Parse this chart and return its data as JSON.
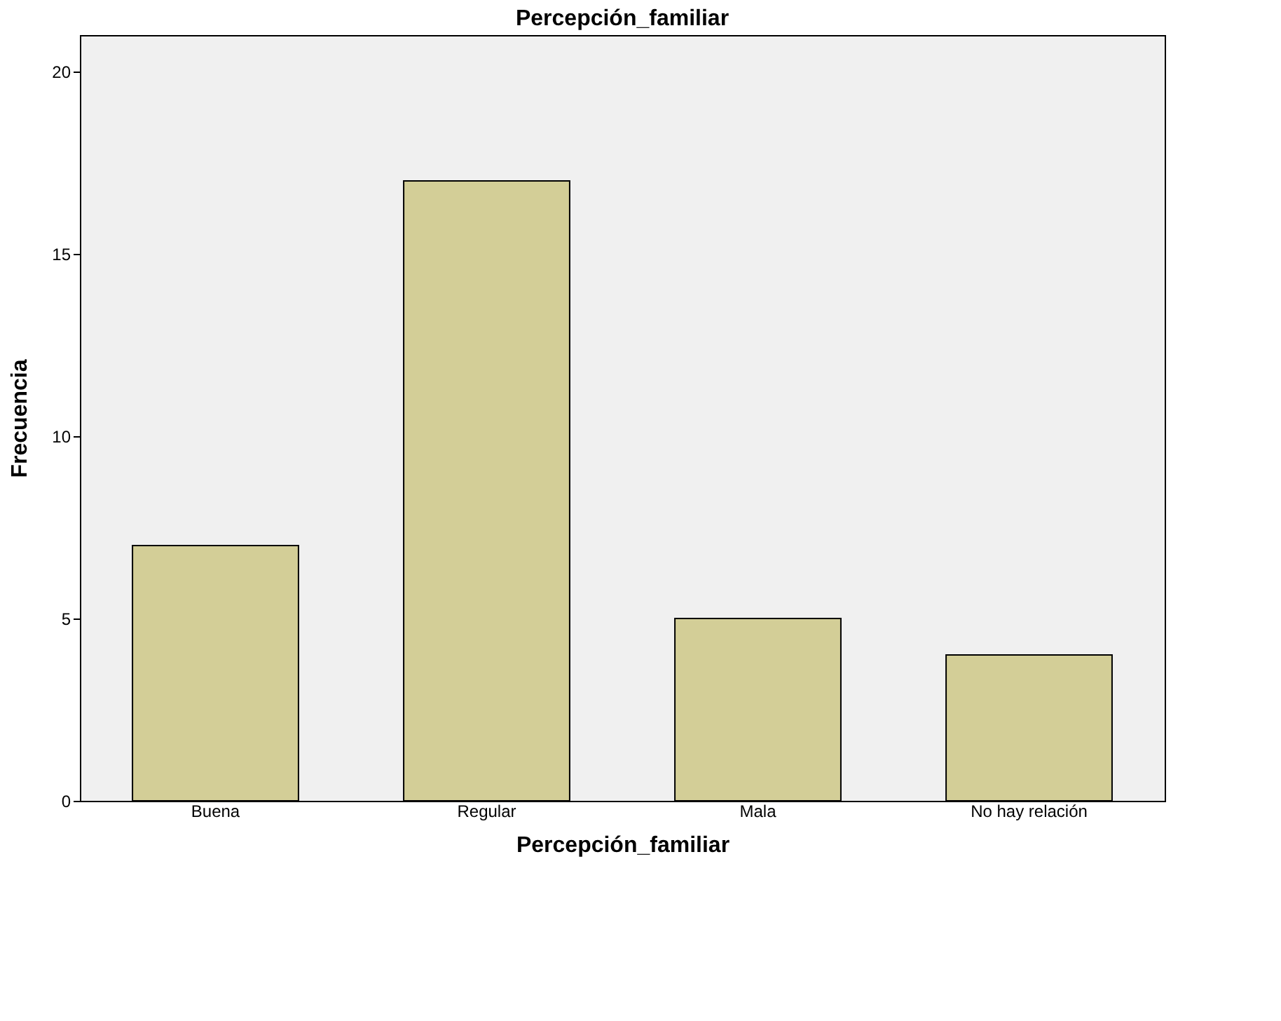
{
  "chart_data": {
    "type": "bar",
    "title": "Percepción_familiar",
    "xlabel": "Percepción_familiar",
    "ylabel": "Frecuencia",
    "categories": [
      "Buena",
      "Regular",
      "Mala",
      "No hay relación"
    ],
    "values": [
      7,
      17,
      5,
      4
    ],
    "color": "#d3ce97",
    "ylim": [
      0,
      21
    ],
    "yticks": [
      0,
      5,
      10,
      15,
      20
    ],
    "grid": false
  }
}
